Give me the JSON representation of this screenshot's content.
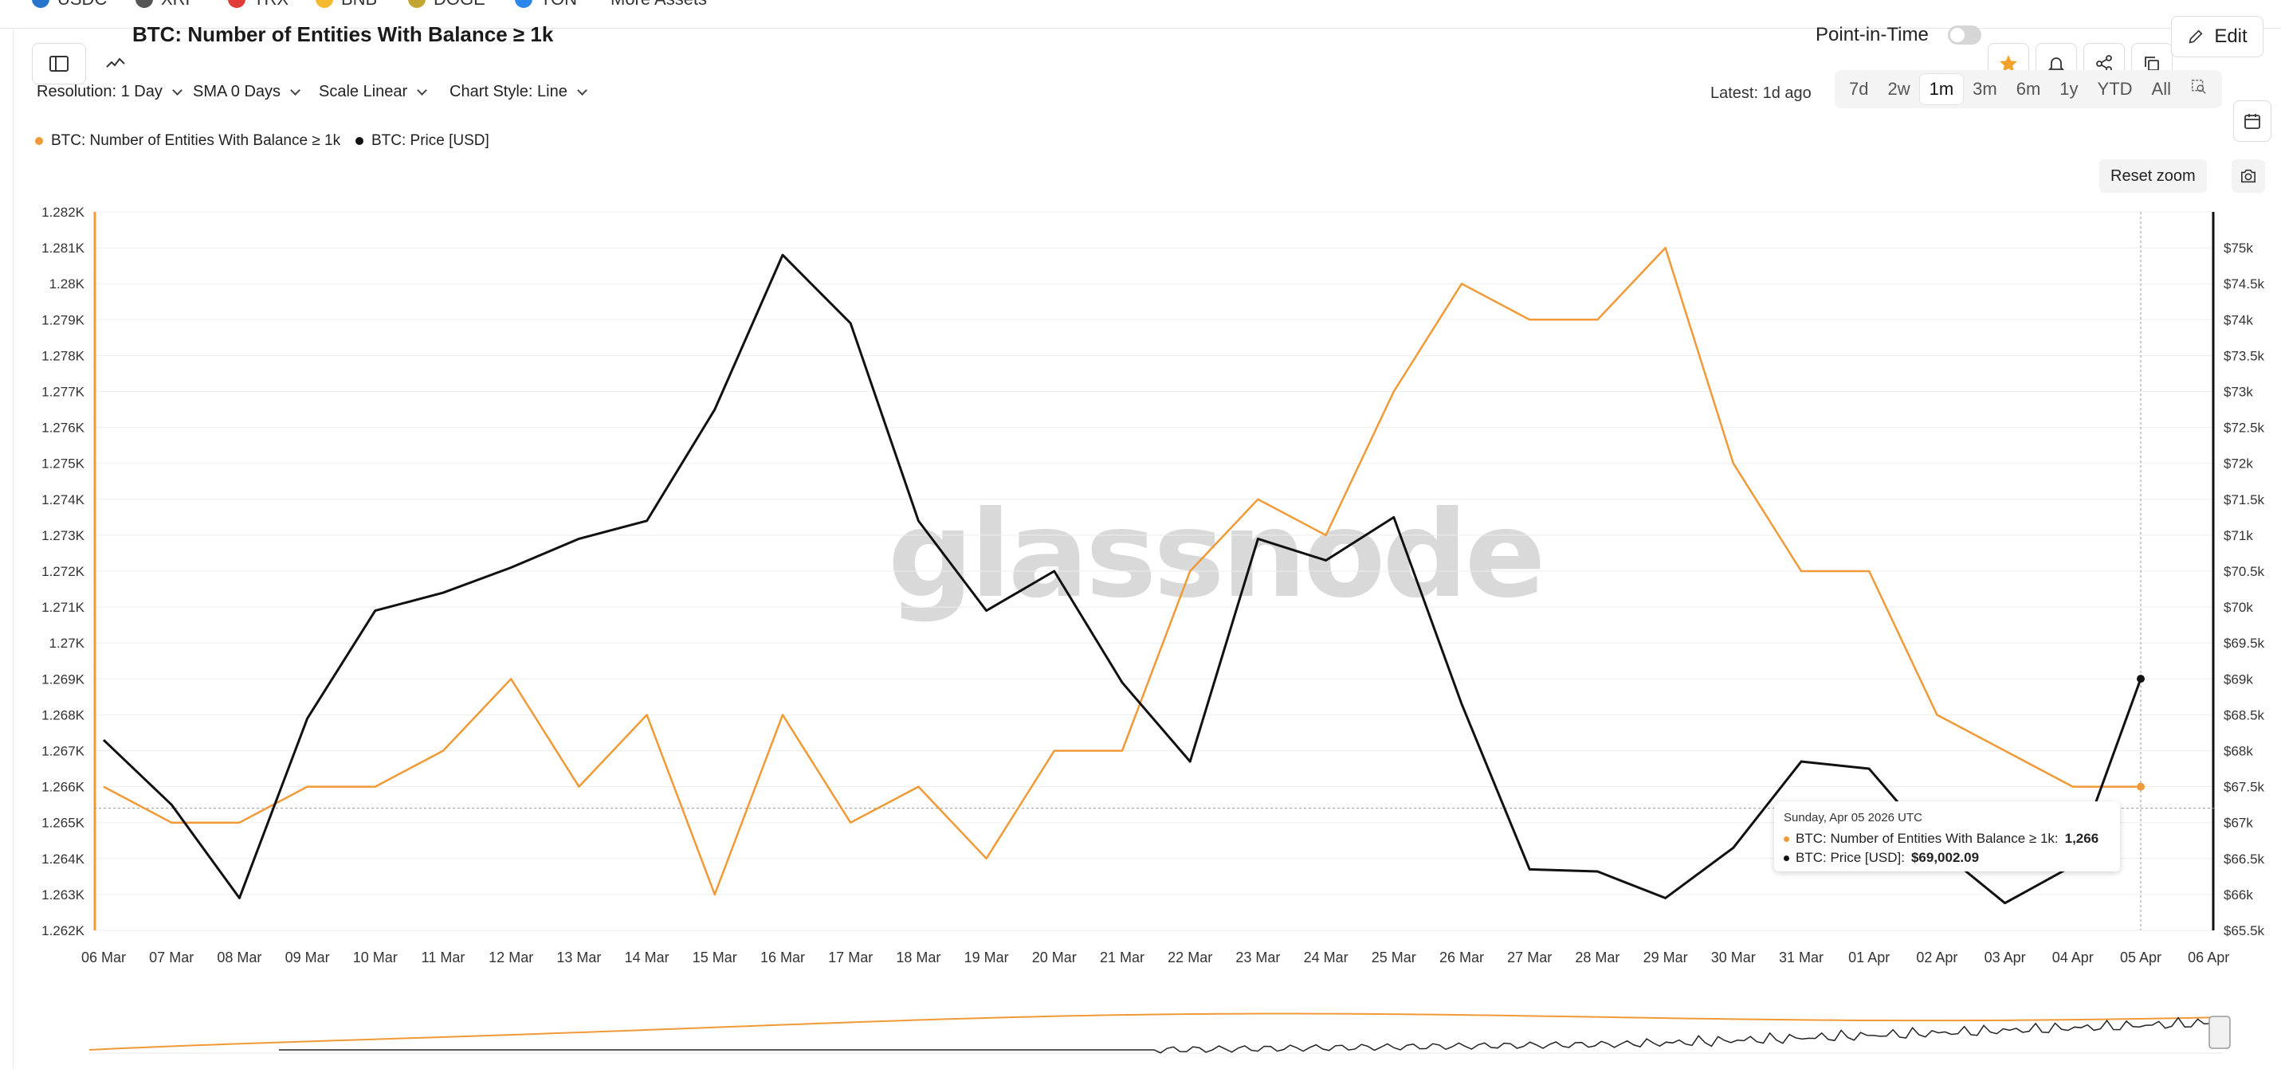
{
  "top_assets": [
    {
      "label": "USDC",
      "color": "#2775ca"
    },
    {
      "label": "XRP",
      "color": "#555555"
    },
    {
      "label": "TRX",
      "color": "#e23b3b"
    },
    {
      "label": "BNB",
      "color": "#f3ba2f"
    },
    {
      "label": "DOGE",
      "color": "#c2a633"
    },
    {
      "label": "TON",
      "color": "#2b87ea"
    },
    {
      "label": "More Assets",
      "color": ""
    }
  ],
  "header": {
    "title": "BTC: Number of Entities With Balance ≥ 1k",
    "point_in_time_label": "Point-in-Time",
    "edit_label": "Edit"
  },
  "controls": {
    "resolution": "Resolution: 1 Day",
    "sma": "SMA 0 Days",
    "scale": "Scale Linear",
    "chart_style": "Chart Style: Line",
    "latest": "Latest: 1d ago",
    "ranges": [
      "7d",
      "2w",
      "1m",
      "3m",
      "6m",
      "1y",
      "YTD",
      "All"
    ],
    "active_range": "1m",
    "reset_zoom": "Reset zoom"
  },
  "watermark": "glassnode",
  "tooltip": {
    "date": "Sunday, Apr 05 2026 UTC",
    "entities_label": "BTC: Number of Entities With Balance ≥ 1k:",
    "entities_value": "1,266",
    "price_label": "BTC: Price [USD]:",
    "price_value": "$69,002.09"
  },
  "chart_data": {
    "type": "line",
    "x": [
      "06 Mar",
      "07 Mar",
      "08 Mar",
      "09 Mar",
      "10 Mar",
      "11 Mar",
      "12 Mar",
      "13 Mar",
      "14 Mar",
      "15 Mar",
      "16 Mar",
      "17 Mar",
      "18 Mar",
      "19 Mar",
      "20 Mar",
      "21 Mar",
      "22 Mar",
      "23 Mar",
      "24 Mar",
      "25 Mar",
      "26 Mar",
      "27 Mar",
      "28 Mar",
      "29 Mar",
      "30 Mar",
      "31 Mar",
      "01 Apr",
      "02 Apr",
      "03 Apr",
      "04 Apr",
      "05 Apr"
    ],
    "x_tick_labels": [
      "06 Mar",
      "07 Mar",
      "08 Mar",
      "09 Mar",
      "10 Mar",
      "11 Mar",
      "12 Mar",
      "13 Mar",
      "14 Mar",
      "15 Mar",
      "16 Mar",
      "17 Mar",
      "18 Mar",
      "19 Mar",
      "20 Mar",
      "21 Mar",
      "22 Mar",
      "23 Mar",
      "24 Mar",
      "25 Mar",
      "26 Mar",
      "27 Mar",
      "28 Mar",
      "29 Mar",
      "30 Mar",
      "31 Mar",
      "01 Apr",
      "02 Apr",
      "03 Apr",
      "04 Apr",
      "05 Apr",
      "06 Apr"
    ],
    "series": [
      {
        "name": "BTC: Number of Entities With Balance ≥ 1k",
        "color": "#f09a37",
        "axis": "left",
        "values": [
          1266,
          1265,
          1265,
          1266,
          1266,
          1267,
          1269,
          1266,
          1268,
          1263,
          1268,
          1265,
          1266,
          1264,
          1267,
          1267,
          1272,
          1274,
          1273,
          1277,
          1280,
          1279,
          1279,
          1281,
          1275,
          1272,
          1272,
          1268,
          1267,
          1266,
          1266
        ]
      },
      {
        "name": "BTC: Price [USD]",
        "color": "#111111",
        "axis": "right",
        "values": [
          68150,
          67250,
          65950,
          68450,
          69950,
          70200,
          70550,
          70950,
          71200,
          72750,
          74900,
          73950,
          71200,
          69950,
          70500,
          68950,
          67850,
          70950,
          70650,
          71250,
          68650,
          66350,
          66320,
          65950,
          66650,
          67850,
          67750,
          66650,
          65880,
          66400,
          69002.09
        ]
      }
    ],
    "y_left": {
      "ylim": [
        1262,
        1282
      ],
      "ticks": [
        "1.262K",
        "1.263K",
        "1.264K",
        "1.265K",
        "1.266K",
        "1.267K",
        "1.268K",
        "1.269K",
        "1.27K",
        "1.271K",
        "1.272K",
        "1.273K",
        "1.274K",
        "1.275K",
        "1.276K",
        "1.277K",
        "1.278K",
        "1.279K",
        "1.28K",
        "1.281K",
        "1.282K"
      ]
    },
    "y_right": {
      "ylim": [
        65500,
        75500
      ],
      "ticks": [
        "$65.5k",
        "$66k",
        "$66.5k",
        "$67k",
        "$67.5k",
        "$68k",
        "$68.5k",
        "$69k",
        "$69.5k",
        "$70k",
        "$70.5k",
        "$71k",
        "$71.5k",
        "$72k",
        "$72.5k",
        "$73k",
        "$73.5k",
        "$74k",
        "$74.5k",
        "$75k"
      ]
    },
    "grid": true,
    "legend_placement": "top-left",
    "crosshair_x": "05 Apr",
    "crosshair_y": 1265.4
  }
}
